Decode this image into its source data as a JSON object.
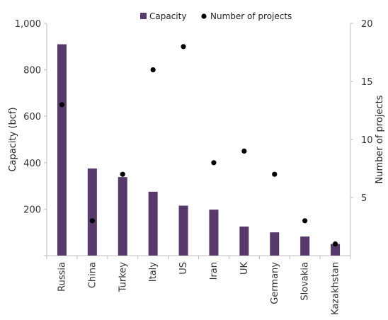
{
  "chart_data": {
    "type": "bar",
    "title": "",
    "categories": [
      "Russia",
      "China",
      "Turkey",
      "Italy",
      "US",
      "Iran",
      "UK",
      "Germany",
      "Slovakia",
      "Kazakhstan"
    ],
    "series": [
      {
        "name": "Capacity",
        "type": "bar",
        "axis": "left",
        "color": "#573a6b",
        "values": [
          910,
          375,
          338,
          275,
          215,
          198,
          125,
          100,
          82,
          50
        ]
      },
      {
        "name": "Number of projects",
        "type": "scatter",
        "axis": "right",
        "color": "#000000",
        "values": [
          13,
          3,
          7,
          16,
          18,
          8,
          9,
          7,
          3,
          1
        ]
      }
    ],
    "ylabel": "Capacity (bcf)",
    "ylim": [
      0,
      1000
    ],
    "yticks": [
      "200",
      "400",
      "600",
      "800",
      "1,000"
    ],
    "y2label": "Number of projects",
    "y2lim": [
      0,
      20
    ],
    "y2ticks": [
      "5",
      "10",
      "15",
      "20"
    ],
    "grid": false,
    "legend_position": "top"
  }
}
